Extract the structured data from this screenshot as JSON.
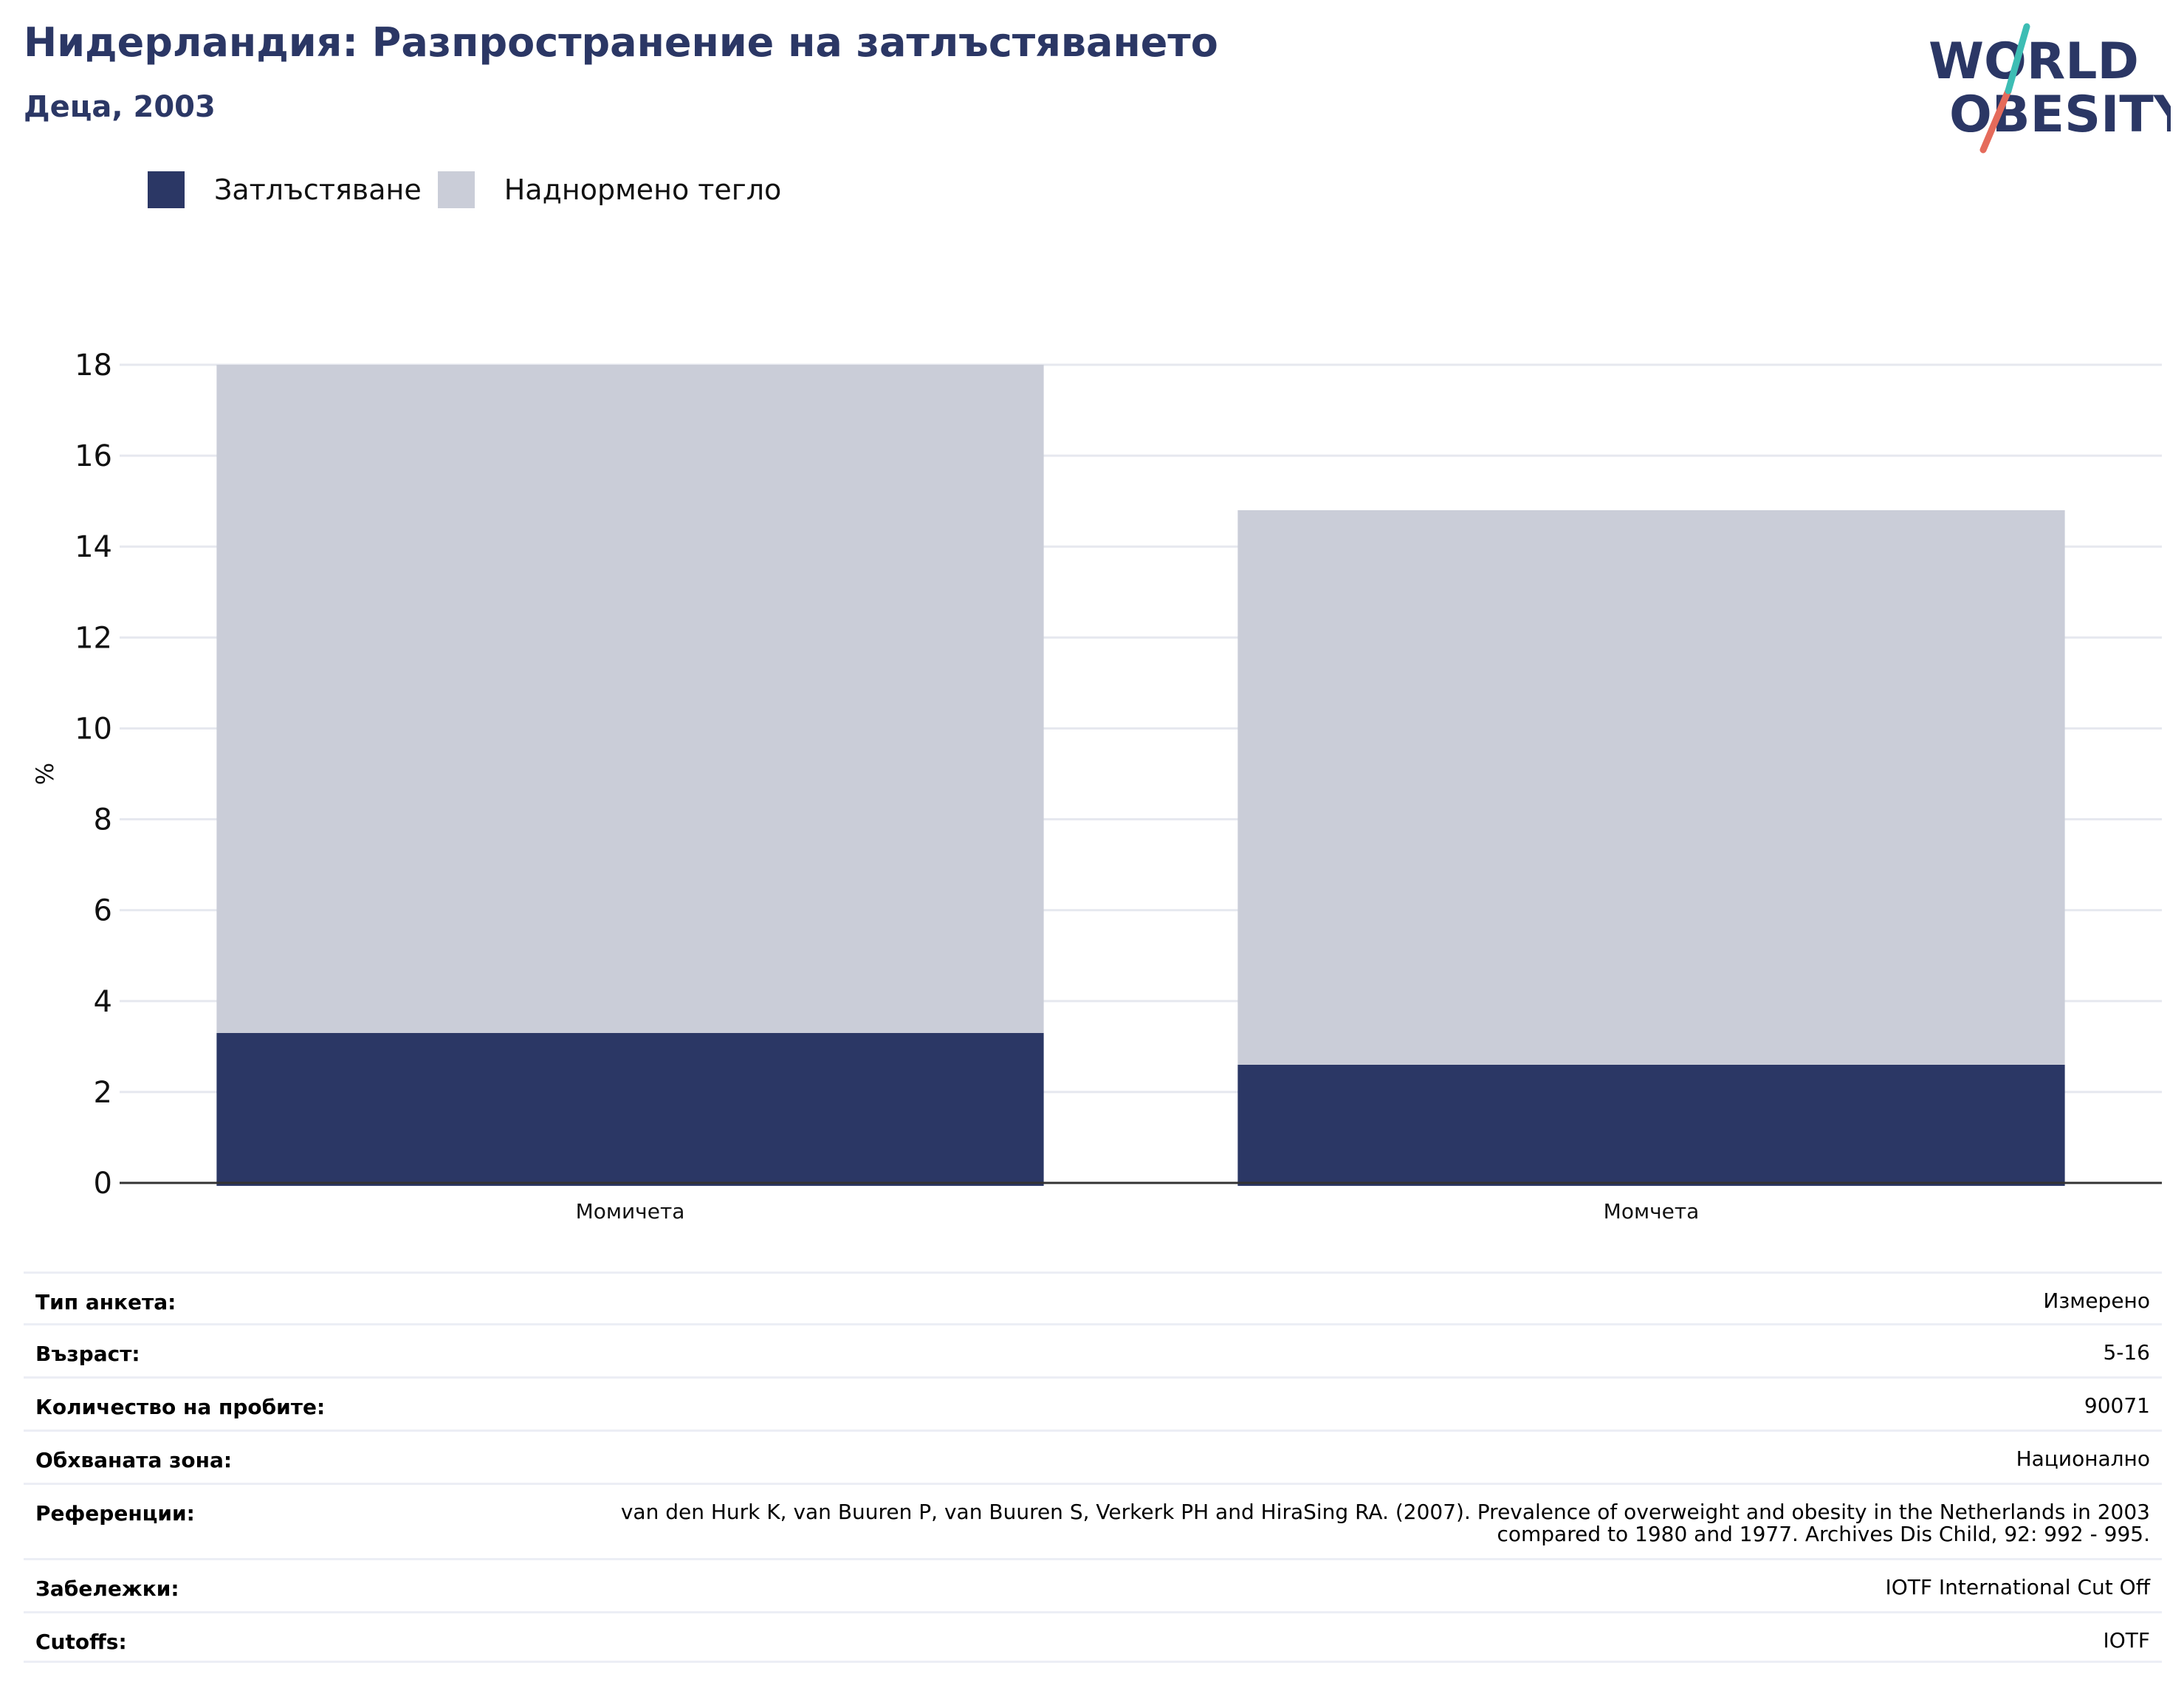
{
  "header": {
    "title": "Нидерландия: Разпространение на затлъстяването",
    "subtitle": "Деца, 2003"
  },
  "logo": {
    "line1": "WORLD",
    "line2": "OBESITY"
  },
  "colors": {
    "obesity": "#2b3765",
    "overweight": "#cacdd8",
    "title": "#2b3765",
    "logo_teal": "#3dbdb4",
    "logo_coral": "#e56b5b"
  },
  "legend": [
    {
      "label": "Затлъстяване",
      "color": "#2b3765"
    },
    {
      "label": "Наднормено тегло",
      "color": "#cacdd8"
    }
  ],
  "chart_data": {
    "type": "bar",
    "stacked": true,
    "categories": [
      "Момичета",
      "Момчета"
    ],
    "series": [
      {
        "name": "Затлъстяване",
        "values": [
          3.3,
          2.6
        ]
      },
      {
        "name": "Наднормено тегло",
        "values": [
          14.7,
          12.2
        ]
      }
    ],
    "ylabel": "%",
    "ylim": [
      0,
      18
    ],
    "yticks": [
      0,
      2,
      4,
      6,
      8,
      10,
      12,
      14,
      16,
      18
    ],
    "grid": true,
    "legend_position": "top-left"
  },
  "details": [
    {
      "label": "Тип анкета:",
      "value": "Измерено"
    },
    {
      "label": "Възраст:",
      "value": "5-16"
    },
    {
      "label": "Количество на пробите:",
      "value": "90071"
    },
    {
      "label": "Обхваната зона:",
      "value": "Национално"
    },
    {
      "label": "Референции:",
      "value": "van den Hurk K, van Buuren P, van Buuren S, Verkerk PH and HiraSing RA. (2007). Prevalence of overweight and obesity in the Netherlands in 2003 compared to 1980 and 1977. Archives Dis Child, 92: 992 - 995."
    },
    {
      "label": "Забележки:",
      "value": "IOTF International Cut Off"
    },
    {
      "label": "Cutoffs:",
      "value": "IOTF"
    }
  ]
}
